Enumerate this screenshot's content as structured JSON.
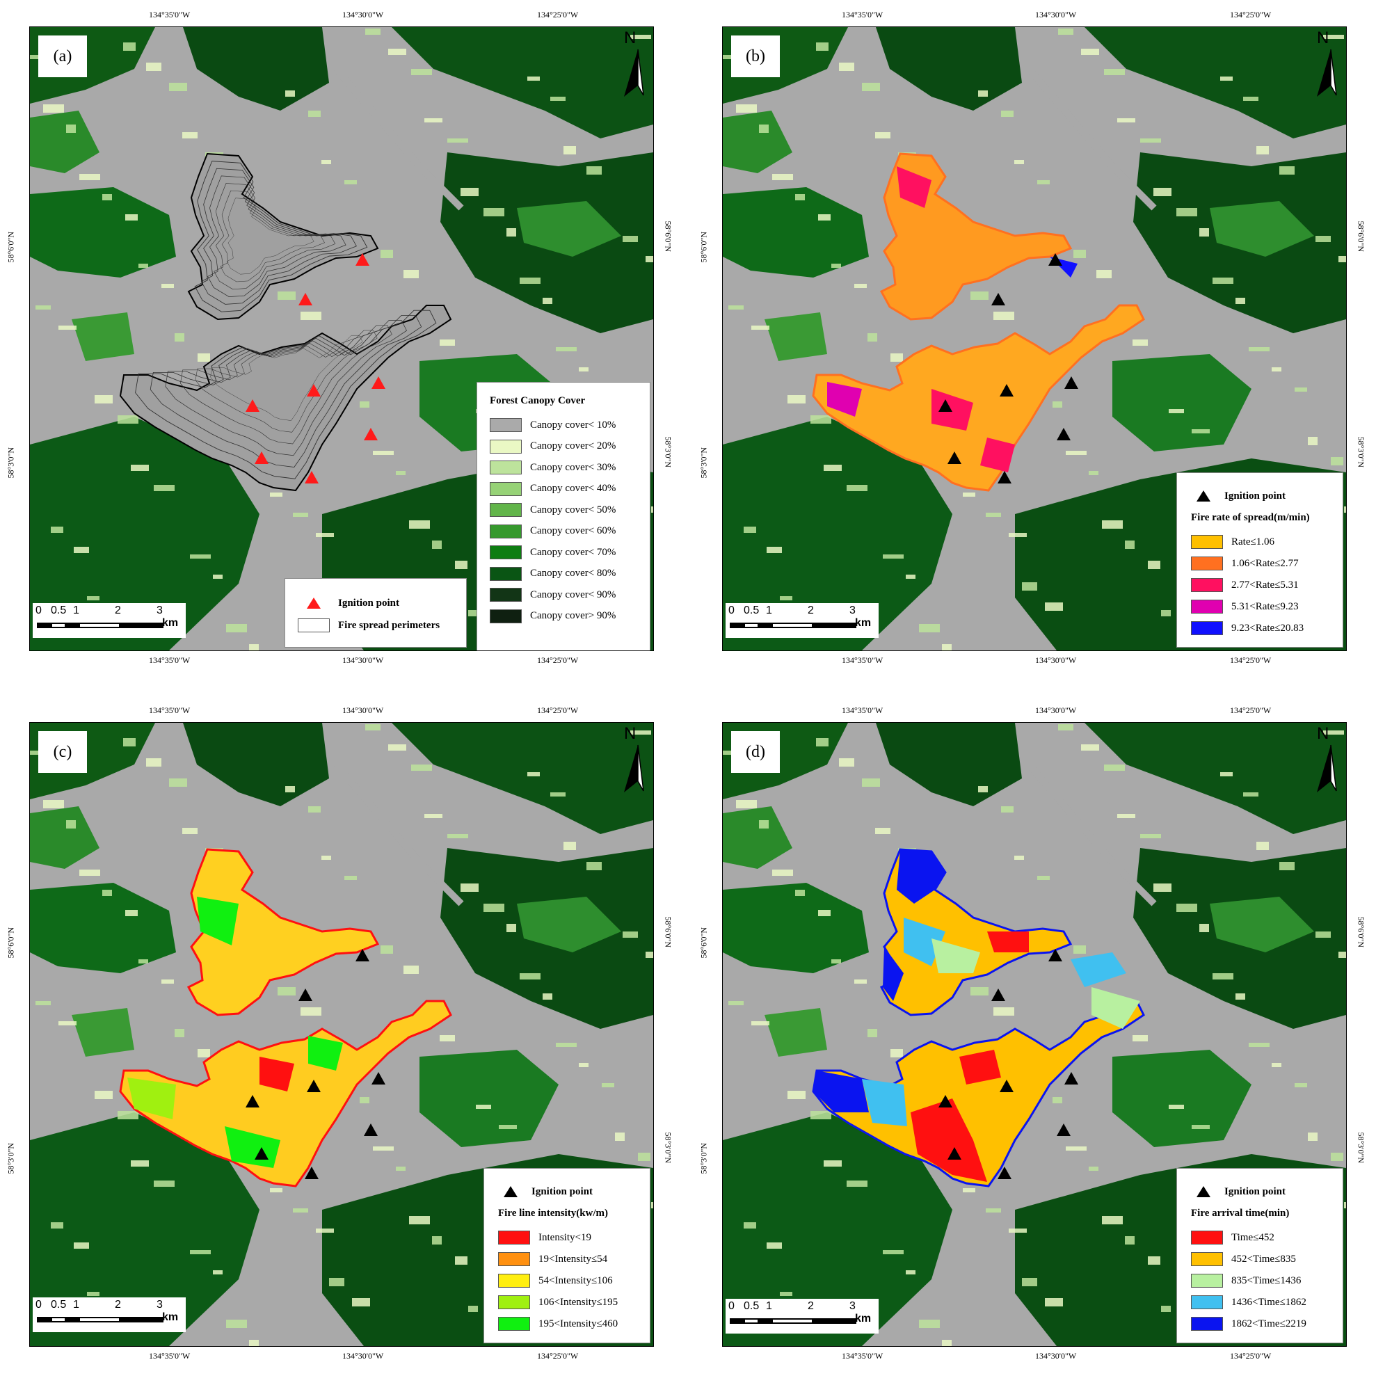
{
  "panels": [
    {
      "id": "a",
      "label": "(a)",
      "ticks": {
        "top": [
          "134°35'0\"W",
          "134°30'0\"W",
          "134°25'0\"W"
        ],
        "bottom": [
          "134°35'0\"W",
          "134°30'0\"W",
          "134°25'0\"W"
        ],
        "left": [
          "58°6'0\"N",
          "58°3'0\"N"
        ],
        "right": [
          "58°6'0\"N",
          "58°3'0\"N"
        ]
      },
      "legend": {
        "title": "Forest Canopy Cover",
        "items": [
          {
            "label": "Canopy cover< 10%",
            "color": "#aaaaaa"
          },
          {
            "label": "Canopy cover< 20%",
            "color": "#eaf8c4"
          },
          {
            "label": "Canopy cover< 30%",
            "color": "#bde39c"
          },
          {
            "label": "Canopy cover< 40%",
            "color": "#96d276"
          },
          {
            "label": "Canopy cover< 50%",
            "color": "#62b54a"
          },
          {
            "label": "Canopy cover< 60%",
            "color": "#36992d"
          },
          {
            "label": "Canopy cover< 70%",
            "color": "#0e7d12"
          },
          {
            "label": "Canopy cover< 80%",
            "color": "#0a5514"
          },
          {
            "label": "Canopy cover< 90%",
            "color": "#123516"
          },
          {
            "label": "Canopy cover> 90%",
            "color": "#0f2011"
          }
        ]
      },
      "ignition_legend": {
        "label": "Ignition point",
        "color": "#ff1a1a"
      },
      "perimeter_legend": {
        "label": "Fire spread perimeters"
      },
      "scale": {
        "labels": [
          "0",
          "0.5",
          "1",
          "2",
          "3"
        ],
        "unit": "km"
      },
      "north": "N"
    },
    {
      "id": "b",
      "label": "(b)",
      "ticks": {
        "top": [
          "134°35'0\"W",
          "134°30'0\"W",
          "134°25'0\"W"
        ],
        "bottom": [
          "134°35'0\"W",
          "134°30'0\"W",
          "134°25'0\"W"
        ],
        "left": [
          "58°6'0\"N",
          "58°3'0\"N"
        ],
        "right": [
          "58°6'0\"N",
          "58°3'0\"N"
        ]
      },
      "ignition_legend": {
        "label": "Ignition point",
        "color": "#000000"
      },
      "legend": {
        "title": "Fire rate of spread(m/min)",
        "items": [
          {
            "label": "Rate≤1.06",
            "color": "#ffc000"
          },
          {
            "label": "1.06<Rate≤2.77",
            "color": "#ff7020"
          },
          {
            "label": "2.77<Rate≤5.31",
            "color": "#ff1060"
          },
          {
            "label": "5.31<Rate≤9.23",
            "color": "#e000b0"
          },
          {
            "label": "9.23<Rate≤20.83",
            "color": "#1010ff"
          }
        ]
      },
      "scale": {
        "labels": [
          "0",
          "0.5",
          "1",
          "2",
          "3"
        ],
        "unit": "km"
      },
      "north": "N"
    },
    {
      "id": "c",
      "label": "(c)",
      "ticks": {
        "top": [
          "134°35'0\"W",
          "134°30'0\"W",
          "134°25'0\"W"
        ],
        "bottom": [
          "134°35'0\"W",
          "134°30'0\"W",
          "134°25'0\"W"
        ],
        "left": [
          "58°6'0\"N",
          "58°3'0\"N"
        ],
        "right": [
          "58°6'0\"N",
          "58°3'0\"N"
        ]
      },
      "ignition_legend": {
        "label": "Ignition point",
        "color": "#000000"
      },
      "legend": {
        "title": "Fire line intensity(kw/m)",
        "items": [
          {
            "label": "Intensity<19",
            "color": "#ff1010"
          },
          {
            "label": "19<Intensity≤54",
            "color": "#ff9010"
          },
          {
            "label": "54<Intensity≤106",
            "color": "#ffee10"
          },
          {
            "label": "106<Intensity≤195",
            "color": "#a0f010"
          },
          {
            "label": "195<Intensity≤460",
            "color": "#10f010"
          }
        ]
      },
      "scale": {
        "labels": [
          "0",
          "0.5",
          "1",
          "2",
          "3"
        ],
        "unit": "km"
      },
      "north": "N"
    },
    {
      "id": "d",
      "label": "(d)",
      "ticks": {
        "top": [
          "134°35'0\"W",
          "134°30'0\"W",
          "134°25'0\"W"
        ],
        "bottom": [
          "134°35'0\"W",
          "134°30'0\"W",
          "134°25'0\"W"
        ],
        "left": [
          "58°6'0\"N",
          "58°3'0\"N"
        ],
        "right": [
          "58°6'0\"N",
          "58°3'0\"N"
        ]
      },
      "ignition_legend": {
        "label": "Ignition point",
        "color": "#000000"
      },
      "legend": {
        "title": "Fire arrival time(min)",
        "items": [
          {
            "label": "Time≤452",
            "color": "#ff1010"
          },
          {
            "label": "452<Time≤835",
            "color": "#ffc000"
          },
          {
            "label": "835<Time≤1436",
            "color": "#b8f0a0"
          },
          {
            "label": "1436<Time≤1862",
            "color": "#40c0f0"
          },
          {
            "label": "1862<Time≤2219",
            "color": "#0a14f0"
          }
        ]
      },
      "scale": {
        "labels": [
          "0",
          "0.5",
          "1",
          "2",
          "3"
        ],
        "unit": "km"
      },
      "north": "N"
    }
  ]
}
